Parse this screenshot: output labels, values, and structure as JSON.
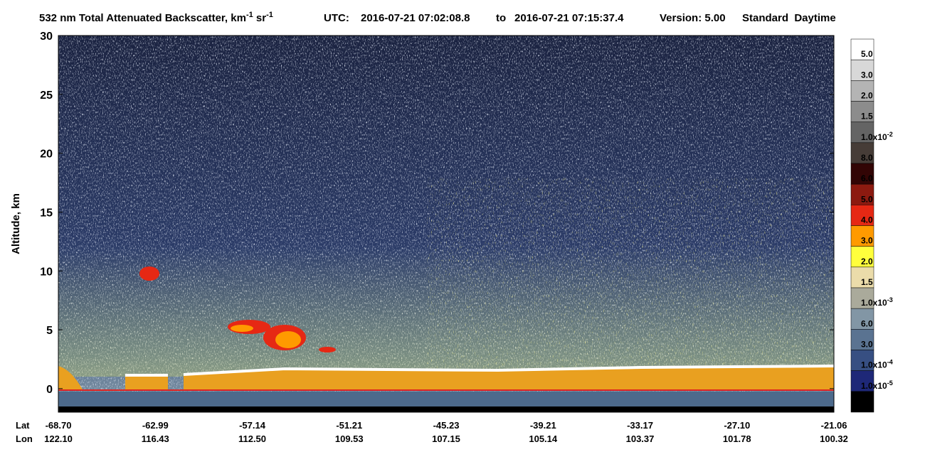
{
  "chart_data": {
    "type": "curtain",
    "title": {
      "quantity": "532 nm Total Attenuated Backscatter, km",
      "exp1": "-1",
      "unit2": " sr",
      "exp2": "-1",
      "utc": "UTC:",
      "start": "2016-07-21 07:02:08.8",
      "to": "to",
      "end": "2016-07-21 07:15:37.4",
      "version": "Version: 5.00",
      "mode": "Standard  Daytime"
    },
    "ylabel": "Altitude, km",
    "ylim": [
      -2,
      30
    ],
    "yticks": [
      0,
      5,
      10,
      15,
      20,
      25,
      30
    ],
    "xrow_labels": [
      "Lat",
      "Lon"
    ],
    "xticks": [
      {
        "lat": "-68.70",
        "lon": "122.10"
      },
      {
        "lat": "-62.99",
        "lon": "116.43"
      },
      {
        "lat": "-57.14",
        "lon": "112.50"
      },
      {
        "lat": "-51.21",
        "lon": "109.53"
      },
      {
        "lat": "-45.23",
        "lon": "107.15"
      },
      {
        "lat": "-39.21",
        "lon": "105.14"
      },
      {
        "lat": "-33.17",
        "lon": "103.37"
      },
      {
        "lat": "-27.10",
        "lon": "101.78"
      },
      {
        "lat": "-21.06",
        "lon": "100.32"
      }
    ],
    "colorbar": [
      {
        "color": "#ffffff",
        "label": "5.0"
      },
      {
        "color": "#d8d8d8",
        "label": "3.0"
      },
      {
        "color": "#b4b4b4",
        "label": "2.0"
      },
      {
        "color": "#8c8c8c",
        "label": "1.5"
      },
      {
        "color": "#646464",
        "label": "1.0x10",
        "exponent": "-2"
      },
      {
        "color": "#463c37",
        "label": "8.0"
      },
      {
        "color": "#320505",
        "label": "6.0"
      },
      {
        "color": "#8c1a10",
        "label": "5.0"
      },
      {
        "color": "#e62814",
        "label": "4.0"
      },
      {
        "color": "#ff9a00",
        "label": "3.0"
      },
      {
        "color": "#ffff3c",
        "label": "2.0"
      },
      {
        "color": "#ebdcaa",
        "label": "1.5"
      },
      {
        "color": "#aaaa9b",
        "label": "1.0x10",
        "exponent": "-3"
      },
      {
        "color": "#8296a5",
        "label": "6.0"
      },
      {
        "color": "#5a7391",
        "label": "3.0"
      },
      {
        "color": "#374f82",
        "label": "1.0x10",
        "exponent": "-4"
      },
      {
        "color": "#1e2878",
        "label": "1.0x10",
        "exponent": "-5"
      },
      {
        "color": "#000000"
      }
    ]
  }
}
